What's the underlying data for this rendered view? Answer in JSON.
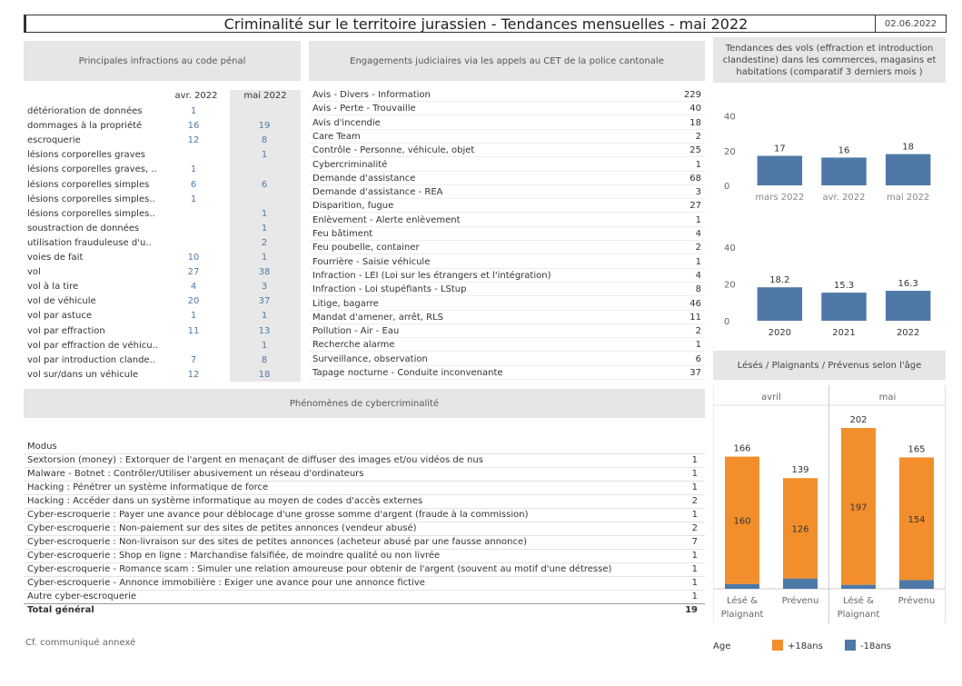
{
  "title": "Criminalité sur le territoire jurassien - Tendances mensuelles - mai 2022",
  "date": "02.06.2022",
  "infractions": {
    "header": "Principales infractions au code pénal",
    "col1": "avr. 2022",
    "col2": "mai 2022",
    "rows": [
      {
        "label": "détérioration de données",
        "a": "1",
        "m": ""
      },
      {
        "label": "dommages à la propriété",
        "a": "16",
        "m": "19"
      },
      {
        "label": "escroquerie",
        "a": "12",
        "m": "8"
      },
      {
        "label": "lésions corporelles graves",
        "a": "",
        "m": "1"
      },
      {
        "label": "lésions corporelles graves, ..",
        "a": "1",
        "m": ""
      },
      {
        "label": "lésions corporelles simples",
        "a": "6",
        "m": "6"
      },
      {
        "label": "lésions corporelles simples..",
        "a": "1",
        "m": ""
      },
      {
        "label": "lésions corporelles simples..",
        "a": "",
        "m": "1"
      },
      {
        "label": "soustraction de données",
        "a": "",
        "m": "1"
      },
      {
        "label": "utilisation frauduleuse d'u..",
        "a": "",
        "m": "2"
      },
      {
        "label": "voies de fait",
        "a": "10",
        "m": "1"
      },
      {
        "label": "vol",
        "a": "27",
        "m": "38"
      },
      {
        "label": "vol à la tire",
        "a": "4",
        "m": "3"
      },
      {
        "label": "vol de véhicule",
        "a": "20",
        "m": "37"
      },
      {
        "label": "vol par astuce",
        "a": "1",
        "m": "1"
      },
      {
        "label": "vol par effraction",
        "a": "11",
        "m": "13"
      },
      {
        "label": "vol par effraction de véhicu..",
        "a": "",
        "m": "1"
      },
      {
        "label": "vol par introduction clande..",
        "a": "7",
        "m": "8"
      },
      {
        "label": "vol sur/dans un véhicule",
        "a": "12",
        "m": "18"
      }
    ]
  },
  "engagements": {
    "header": "Engagements judiciaires via les appels au CET de la police cantonale",
    "rows": [
      {
        "label": "Avis - Divers - Information",
        "v": "229"
      },
      {
        "label": "Avis - Perte - Trouvaille",
        "v": "40"
      },
      {
        "label": "Avis d'incendie",
        "v": "18"
      },
      {
        "label": "Care Team",
        "v": "2"
      },
      {
        "label": "Contrôle - Personne, véhicule, objet",
        "v": "25"
      },
      {
        "label": "Cybercriminalité",
        "v": "1"
      },
      {
        "label": "Demande d'assistance",
        "v": "68"
      },
      {
        "label": "Demande d'assistance - REA",
        "v": "3"
      },
      {
        "label": "Disparition, fugue",
        "v": "27"
      },
      {
        "label": "Enlèvement - Alerte enlèvement",
        "v": "1"
      },
      {
        "label": "Feu bâtiment",
        "v": "4"
      },
      {
        "label": "Feu poubelle, container",
        "v": "2"
      },
      {
        "label": "Fourrière - Saisie véhicule",
        "v": "1"
      },
      {
        "label": "Infraction - LEI (Loi sur les étrangers et l'intégration)",
        "v": "4"
      },
      {
        "label": "Infraction - Loi stupéfiants - LStup",
        "v": "8"
      },
      {
        "label": "Litige, bagarre",
        "v": "46"
      },
      {
        "label": "Mandat d'amener, arrêt, RLS",
        "v": "11"
      },
      {
        "label": "Pollution - Air - Eau",
        "v": "2"
      },
      {
        "label": "Recherche alarme",
        "v": "1"
      },
      {
        "label": "Surveillance, observation",
        "v": "6"
      },
      {
        "label": "Tapage nocturne - Conduite inconvenante",
        "v": "37"
      }
    ]
  },
  "cyber": {
    "header": "Phénomènes de cybercriminalité",
    "modus_label": "Modus",
    "rows": [
      {
        "label": "Sextorsion (money) : Extorquer de l'argent en menaçant de diffuser des images et/ou vidéos de nus",
        "v": "1"
      },
      {
        "label": "Malware - Botnet : Contrôler/Utiliser abusivement un réseau d'ordinateurs",
        "v": "1"
      },
      {
        "label": "Hacking : Pénétrer un système informatique de force",
        "v": "1"
      },
      {
        "label": "Hacking : Accéder dans un système informatique au moyen de codes d'accès externes",
        "v": "2"
      },
      {
        "label": "Cyber-escroquerie : Payer une avance pour déblocage d'une grosse somme d'argent (fraude à la commission)",
        "v": "1"
      },
      {
        "label": "Cyber-escroquerie : Non-paiement sur des sites de petites annonces (vendeur abusé)",
        "v": "2"
      },
      {
        "label": "Cyber-escroquerie : Non-livraison sur des sites de petites annonces (acheteur abusé par une fausse annonce)",
        "v": "7"
      },
      {
        "label": "Cyber-escroquerie : Shop en ligne : Marchandise falsifiée, de moindre qualité ou non livrée",
        "v": "1"
      },
      {
        "label": "Cyber-escroquerie - Romance scam : Simuler une relation amoureuse pour obtenir de l'argent (souvent au motif d'une détresse)",
        "v": "1"
      },
      {
        "label": "Cyber-escroquerie - Annonce immobilière : Exiger une avance pour une annonce fictive",
        "v": "1"
      },
      {
        "label": "Autre cyber-escroquerie",
        "v": "1"
      },
      {
        "label": "Total général",
        "v": "19"
      }
    ]
  },
  "footnote": "Cf. communiqué annexé",
  "chart_data": [
    {
      "type": "bar",
      "title": "Tendances des vols (effraction et introduction clandestine) dans les commerces, magasins et habitations (comparatif 3 derniers mois )",
      "categories": [
        "mars 2022",
        "avr. 2022",
        "mai 2022"
      ],
      "values": [
        17,
        16,
        18
      ],
      "value_labels": [
        "17",
        "16",
        "18"
      ],
      "ylim": [
        0,
        45
      ],
      "yticks": [
        "0",
        "20",
        "40"
      ],
      "color": "#4e79a7"
    },
    {
      "type": "bar",
      "categories": [
        "2020",
        "2021",
        "2022"
      ],
      "values": [
        18.2,
        15.3,
        16.3
      ],
      "value_labels": [
        "18.2",
        "15.3",
        "16.3"
      ],
      "ylim": [
        0,
        45
      ],
      "yticks": [
        "0",
        "20",
        "40"
      ],
      "color": "#4e79a7"
    },
    {
      "type": "bar",
      "stacked": true,
      "title": "Lésés / Plaignants / Prévenus selon l'âge",
      "groups": [
        "avril",
        "mai"
      ],
      "categories": [
        "Lésé & Plaignant",
        "Prévenu"
      ],
      "cat_lines": [
        [
          "Lésé &",
          "Plaignant"
        ],
        [
          "Prévenu"
        ]
      ],
      "series": [
        {
          "name": "+18ans",
          "color": "#f28e2b",
          "values": [
            [
              160,
              126
            ],
            [
              197,
              154
            ]
          ]
        },
        {
          "name": "-18ans",
          "color": "#4e79a7",
          "values": [
            [
              6,
              13
            ],
            [
              5,
              11
            ]
          ]
        }
      ],
      "totals": [
        [
          "166",
          "139"
        ],
        [
          "202",
          "165"
        ]
      ],
      "inner_labels": [
        [
          "160",
          "126"
        ],
        [
          "197",
          "154"
        ]
      ],
      "ylim": [
        0,
        210
      ],
      "legend_title": "Age"
    }
  ]
}
